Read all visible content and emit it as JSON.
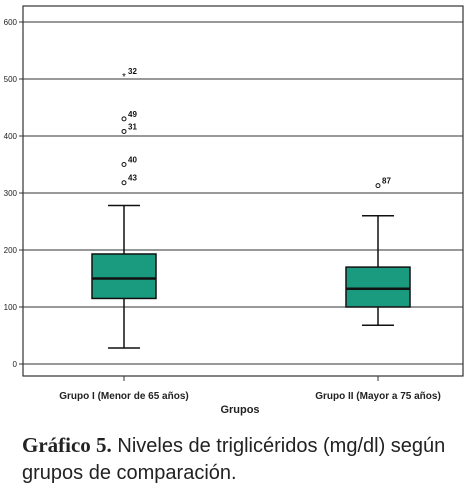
{
  "chart_data": {
    "type": "boxplot",
    "xlabel": "Grupos",
    "ylabel": "",
    "ylim": [
      -20,
      640
    ],
    "yticks": [
      0,
      100,
      200,
      300,
      400,
      500,
      600
    ],
    "grid": "horizontal",
    "box_color": "#1a9a7f",
    "categories": [
      "Grupo I (Menor de 65 años)",
      "Grupo II (Mayor a 75 años)"
    ],
    "boxes": [
      {
        "category": "Grupo I (Menor de 65 años)",
        "whisker_low": 28,
        "q1": 115,
        "median": 150,
        "q3": 193,
        "whisker_high": 278,
        "outliers": [
          {
            "label": "32",
            "value": 505,
            "marker": "*"
          },
          {
            "label": "49",
            "value": 430,
            "marker": "o"
          },
          {
            "label": "31",
            "value": 408,
            "marker": "o"
          },
          {
            "label": "40",
            "value": 350,
            "marker": "o"
          },
          {
            "label": "43",
            "value": 318,
            "marker": "o"
          }
        ]
      },
      {
        "category": "Grupo II (Mayor a 75 años)",
        "whisker_low": 68,
        "q1": 100,
        "median": 132,
        "q3": 170,
        "whisker_high": 260,
        "outliers": [
          {
            "label": "87",
            "value": 313,
            "marker": "o"
          }
        ]
      }
    ]
  },
  "caption": {
    "bold": "Gráfico 5.",
    "text": " Niveles de triglicéridos (mg/dl) según grupos de comparación."
  }
}
